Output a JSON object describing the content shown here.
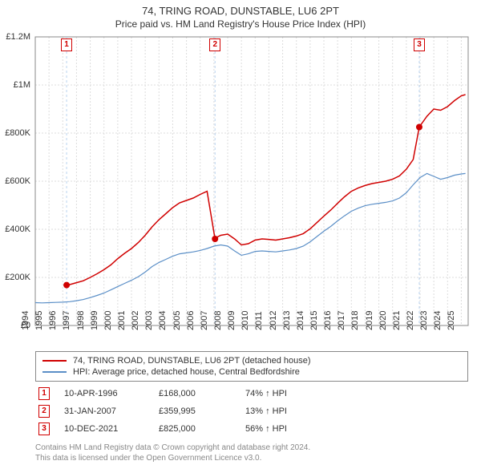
{
  "title": "74, TRING ROAD, DUNSTABLE, LU6 2PT",
  "subtitle": "Price paid vs. HM Land Registry's House Price Index (HPI)",
  "chart": {
    "background_color": "#ffffff",
    "grid_color": "#dddddd",
    "axis_color": "#888888",
    "xlim": [
      1994,
      2025.5
    ],
    "ylim": [
      0,
      1200000
    ],
    "ytick_step": 200000,
    "y_ticks": [
      {
        "v": 0,
        "label": "£0"
      },
      {
        "v": 200000,
        "label": "£200K"
      },
      {
        "v": 400000,
        "label": "£400K"
      },
      {
        "v": 600000,
        "label": "£600K"
      },
      {
        "v": 800000,
        "label": "£800K"
      },
      {
        "v": 1000000,
        "label": "£1M"
      },
      {
        "v": 1200000,
        "label": "£1.2M"
      }
    ],
    "x_ticks": [
      1994,
      1995,
      1996,
      1997,
      1998,
      1999,
      2000,
      2001,
      2002,
      2003,
      2004,
      2005,
      2006,
      2007,
      2008,
      2009,
      2010,
      2011,
      2012,
      2013,
      2014,
      2015,
      2016,
      2017,
      2018,
      2019,
      2020,
      2021,
      2022,
      2023,
      2024,
      2025
    ],
    "series": [
      {
        "name": "property_price",
        "label": "74, TRING ROAD, DUNSTABLE, LU6 2PT (detached house)",
        "color": "#d00000",
        "line_width": 1.5,
        "points": [
          [
            1996.28,
            168000
          ],
          [
            1996.5,
            170000
          ],
          [
            1997,
            178000
          ],
          [
            1997.5,
            186000
          ],
          [
            1998,
            200000
          ],
          [
            1998.5,
            215000
          ],
          [
            1999,
            232000
          ],
          [
            1999.5,
            252000
          ],
          [
            2000,
            278000
          ],
          [
            2000.5,
            300000
          ],
          [
            2001,
            320000
          ],
          [
            2001.5,
            345000
          ],
          [
            2002,
            375000
          ],
          [
            2002.5,
            410000
          ],
          [
            2003,
            440000
          ],
          [
            2003.5,
            465000
          ],
          [
            2004,
            490000
          ],
          [
            2004.5,
            510000
          ],
          [
            2005,
            520000
          ],
          [
            2005.5,
            530000
          ],
          [
            2006,
            545000
          ],
          [
            2006.5,
            558000
          ],
          [
            2007.08,
            359995
          ],
          [
            2007.15,
            365000
          ],
          [
            2007.5,
            375000
          ],
          [
            2008,
            380000
          ],
          [
            2008.5,
            360000
          ],
          [
            2009,
            335000
          ],
          [
            2009.5,
            340000
          ],
          [
            2010,
            355000
          ],
          [
            2010.5,
            360000
          ],
          [
            2011,
            358000
          ],
          [
            2011.5,
            355000
          ],
          [
            2012,
            360000
          ],
          [
            2012.5,
            365000
          ],
          [
            2013,
            372000
          ],
          [
            2013.5,
            382000
          ],
          [
            2014,
            402000
          ],
          [
            2014.5,
            428000
          ],
          [
            2015,
            455000
          ],
          [
            2015.5,
            480000
          ],
          [
            2016,
            508000
          ],
          [
            2016.5,
            535000
          ],
          [
            2017,
            558000
          ],
          [
            2017.5,
            572000
          ],
          [
            2018,
            582000
          ],
          [
            2018.5,
            590000
          ],
          [
            2019,
            595000
          ],
          [
            2019.5,
            600000
          ],
          [
            2020,
            608000
          ],
          [
            2020.5,
            622000
          ],
          [
            2021,
            650000
          ],
          [
            2021.5,
            690000
          ],
          [
            2021.94,
            825000
          ],
          [
            2022.0,
            830000
          ],
          [
            2022.5,
            870000
          ],
          [
            2023,
            900000
          ],
          [
            2023.5,
            895000
          ],
          [
            2024,
            910000
          ],
          [
            2024.5,
            935000
          ],
          [
            2025,
            955000
          ],
          [
            2025.3,
            960000
          ]
        ]
      },
      {
        "name": "hpi",
        "label": "HPI: Average price, detached house, Central Bedfordshire",
        "color": "#5b8fc7",
        "line_width": 1.2,
        "points": [
          [
            1994,
            95000
          ],
          [
            1994.5,
            94000
          ],
          [
            1995,
            95000
          ],
          [
            1995.5,
            96000
          ],
          [
            1996,
            97000
          ],
          [
            1996.5,
            99000
          ],
          [
            1997,
            103000
          ],
          [
            1997.5,
            108000
          ],
          [
            1998,
            116000
          ],
          [
            1998.5,
            125000
          ],
          [
            1999,
            135000
          ],
          [
            1999.5,
            148000
          ],
          [
            2000,
            162000
          ],
          [
            2000.5,
            175000
          ],
          [
            2001,
            188000
          ],
          [
            2001.5,
            203000
          ],
          [
            2002,
            222000
          ],
          [
            2002.5,
            245000
          ],
          [
            2003,
            262000
          ],
          [
            2003.5,
            275000
          ],
          [
            2004,
            288000
          ],
          [
            2004.5,
            298000
          ],
          [
            2005,
            302000
          ],
          [
            2005.5,
            306000
          ],
          [
            2006,
            312000
          ],
          [
            2006.5,
            320000
          ],
          [
            2007,
            330000
          ],
          [
            2007.5,
            335000
          ],
          [
            2008,
            330000
          ],
          [
            2008.5,
            310000
          ],
          [
            2009,
            292000
          ],
          [
            2009.5,
            298000
          ],
          [
            2010,
            308000
          ],
          [
            2010.5,
            310000
          ],
          [
            2011,
            308000
          ],
          [
            2011.5,
            306000
          ],
          [
            2012,
            310000
          ],
          [
            2012.5,
            314000
          ],
          [
            2013,
            320000
          ],
          [
            2013.5,
            330000
          ],
          [
            2014,
            348000
          ],
          [
            2014.5,
            370000
          ],
          [
            2015,
            392000
          ],
          [
            2015.5,
            412000
          ],
          [
            2016,
            435000
          ],
          [
            2016.5,
            456000
          ],
          [
            2017,
            475000
          ],
          [
            2017.5,
            488000
          ],
          [
            2018,
            498000
          ],
          [
            2018.5,
            504000
          ],
          [
            2019,
            508000
          ],
          [
            2019.5,
            512000
          ],
          [
            2020,
            518000
          ],
          [
            2020.5,
            530000
          ],
          [
            2021,
            552000
          ],
          [
            2021.5,
            585000
          ],
          [
            2022,
            615000
          ],
          [
            2022.5,
            632000
          ],
          [
            2023,
            620000
          ],
          [
            2023.5,
            608000
          ],
          [
            2024,
            615000
          ],
          [
            2024.5,
            625000
          ],
          [
            2025,
            630000
          ],
          [
            2025.3,
            632000
          ]
        ]
      }
    ],
    "markers": [
      {
        "badge": "1",
        "x": 1996.28,
        "y": 168000
      },
      {
        "badge": "2",
        "x": 2007.08,
        "y": 359995
      },
      {
        "badge": "3",
        "x": 2021.94,
        "y": 825000
      }
    ],
    "marker_color": "#d00000",
    "marker_radius": 4
  },
  "legend": {
    "items": [
      {
        "color": "#d00000",
        "label": "74, TRING ROAD, DUNSTABLE, LU6 2PT (detached house)"
      },
      {
        "color": "#5b8fc7",
        "label": "HPI: Average price, detached house, Central Bedfordshire"
      }
    ]
  },
  "transactions": [
    {
      "badge": "1",
      "date": "10-APR-1996",
      "price": "£168,000",
      "delta": "74% ↑ HPI"
    },
    {
      "badge": "2",
      "date": "31-JAN-2007",
      "price": "£359,995",
      "delta": "13% ↑ HPI"
    },
    {
      "badge": "3",
      "date": "10-DEC-2021",
      "price": "£825,000",
      "delta": "56% ↑ HPI"
    }
  ],
  "footer_line1": "Contains HM Land Registry data © Crown copyright and database right 2024.",
  "footer_line2": "This data is licensed under the Open Government Licence v3.0."
}
